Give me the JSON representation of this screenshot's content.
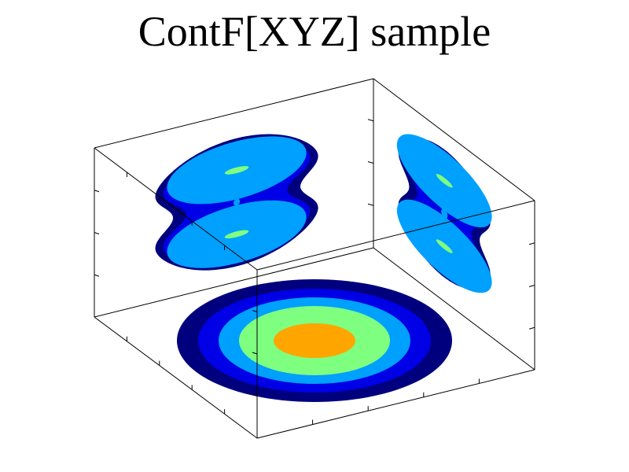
{
  "chart_data": {
    "type": "contour-projections-3d",
    "title": "ContF[XYZ] sample",
    "xlabel": "",
    "ylabel": "",
    "zlabel": "",
    "legend": "none",
    "grid": false,
    "levels": [
      {
        "name": "level-1",
        "color": "#00007f"
      },
      {
        "name": "level-2",
        "color": "#0000e6"
      },
      {
        "name": "level-3",
        "color": "#00a0ff"
      },
      {
        "name": "level-4",
        "color": "#7fff7f"
      },
      {
        "name": "level-5",
        "color": "#ffa500"
      }
    ],
    "projections": {
      "floor": {
        "plane": "xy",
        "rings": [
          1,
          2,
          3,
          4,
          5
        ]
      },
      "back_wall": {
        "plane": "xz",
        "lobes": 2,
        "rings": [
          1,
          2,
          3,
          4
        ]
      },
      "right_wall": {
        "plane": "yz",
        "lobes": 2,
        "rings": [
          1,
          2,
          3,
          4
        ]
      }
    }
  }
}
